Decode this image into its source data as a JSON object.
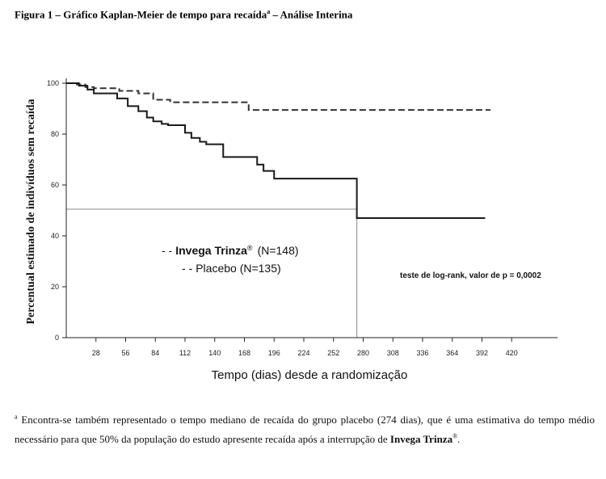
{
  "figure_title": {
    "prefix": "Figura 1 – Gráfico Kaplan-Meier de tempo para recaída",
    "sup": "a",
    "suffix": " – Análise Interina"
  },
  "chart_data": {
    "type": "line",
    "subtype": "kaplan-meier-step",
    "xlabel": "Tempo (dias) desde a randomização",
    "ylabel": "Percentual estimado de indivíduos sem recaída",
    "xlim": [
      0,
      448
    ],
    "ylim": [
      0,
      100
    ],
    "xticks": [
      28,
      56,
      84,
      112,
      140,
      168,
      196,
      224,
      252,
      280,
      308,
      336,
      364,
      392,
      420
    ],
    "yticks": [
      0,
      20,
      40,
      60,
      80,
      100
    ],
    "grid": false,
    "series": [
      {
        "name": "Invega Trinza® (N=148)",
        "color": "#333333",
        "style": "dashed",
        "x": [
          0,
          10,
          18,
          26,
          40,
          50,
          68,
          82,
          98,
          172,
          400
        ],
        "y": [
          100,
          99.5,
          98.5,
          98,
          98,
          97,
          96,
          93.5,
          92.5,
          89.5,
          89.5
        ]
      },
      {
        "name": "Placebo (N=135)",
        "color": "#1a1a1a",
        "style": "solid",
        "x": [
          0,
          12,
          20,
          26,
          48,
          58,
          68,
          76,
          82,
          90,
          96,
          112,
          118,
          126,
          132,
          148,
          180,
          186,
          196,
          274,
          274,
          395
        ],
        "y": [
          100,
          99,
          97.5,
          96,
          94,
          91,
          89,
          86.5,
          85,
          84,
          83.5,
          80.5,
          78.5,
          77,
          76,
          71,
          68,
          65.5,
          62.5,
          62.5,
          47,
          47
        ]
      }
    ],
    "median_reference": {
      "y": 50.5,
      "x": 274
    },
    "legend": {
      "placement": "center",
      "items": [
        {
          "marker": "- -",
          "text": "Invega Trinza",
          "sup": "®",
          "n": "(N=148)"
        },
        {
          "marker": "- -",
          "text": "Placebo (N=135)"
        }
      ]
    },
    "annotation": "teste de log-rank, valor de p = 0,0002"
  },
  "footnote": {
    "sup": "a",
    "text_1": " Encontra-se também representado o tempo mediano de recaída do grupo placebo (274 dias), que é uma estimativa do tempo médio necessário para que 50% da população do estudo apresente recaída após a interrupção de ",
    "bold": "Invega Trinza",
    "sup_end": "®",
    "text_2": "."
  }
}
